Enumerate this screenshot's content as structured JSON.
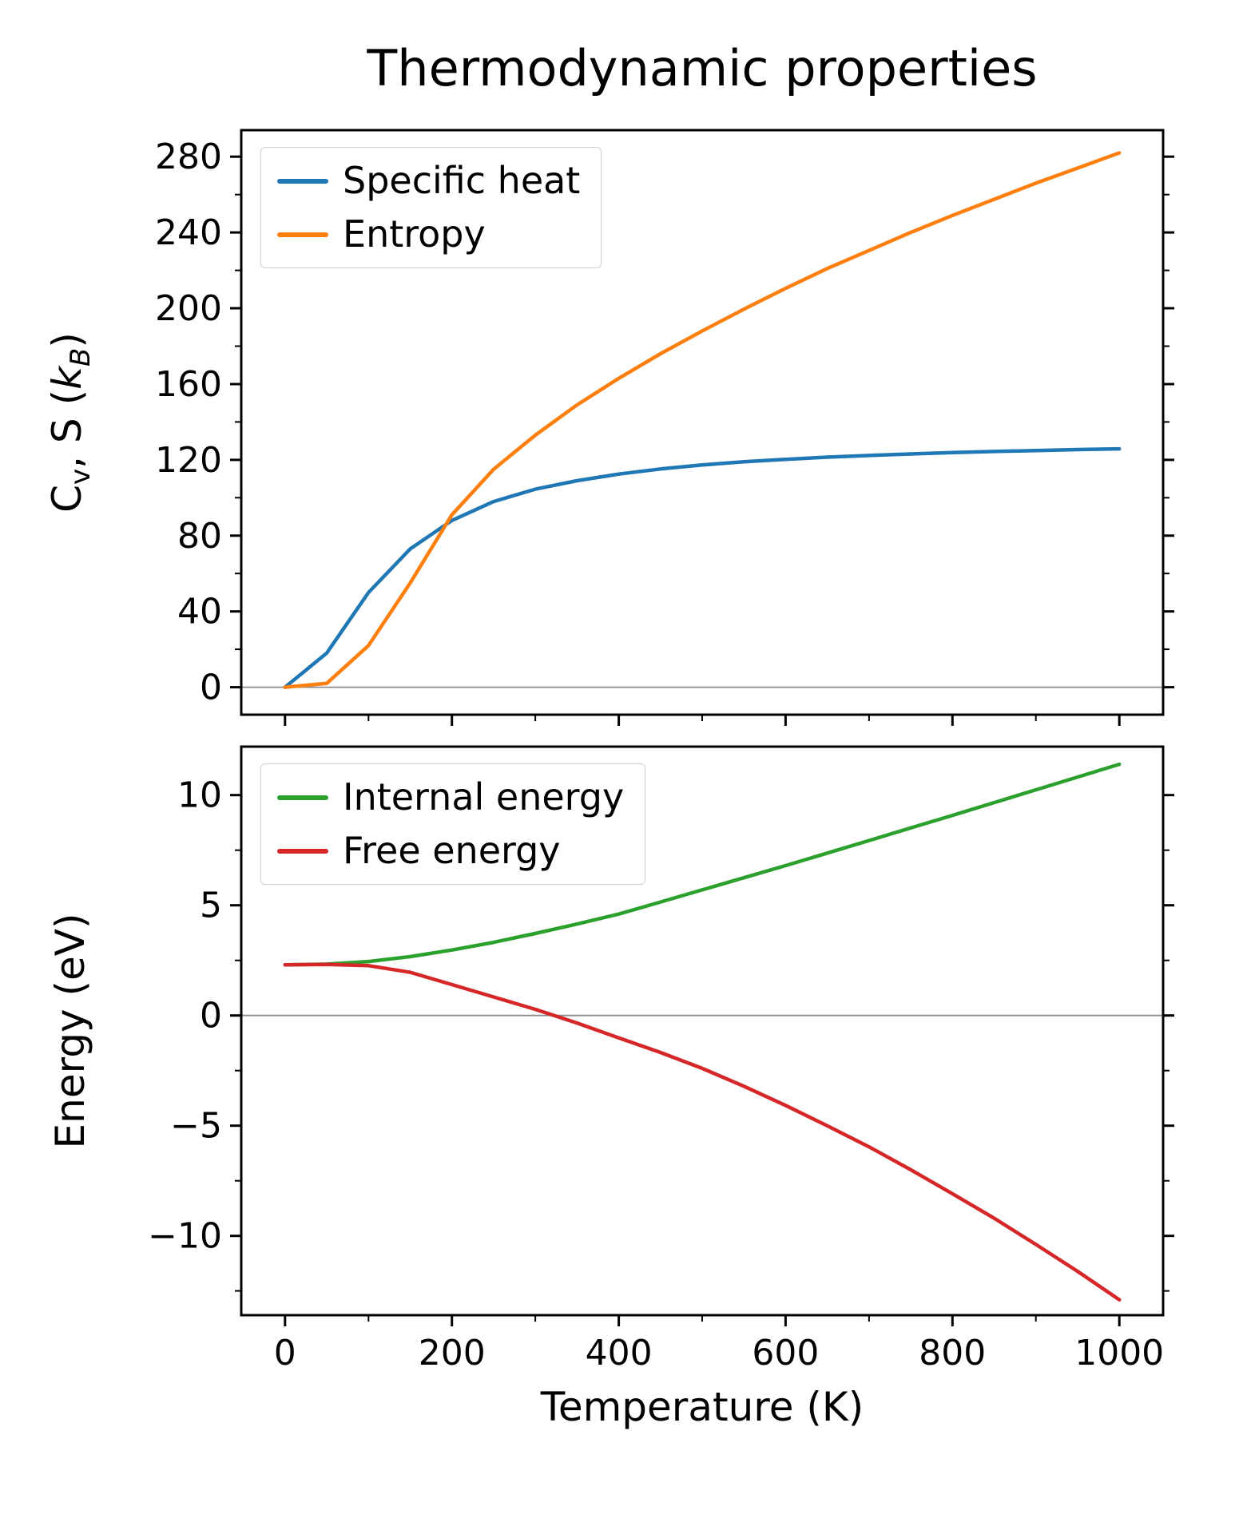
{
  "figure": {
    "background": "#ffffff"
  },
  "chart_data": [
    {
      "type": "line",
      "title": "Thermodynamic properties",
      "xlabel": "",
      "ylabel": "C_v, S (k_B)",
      "ylabel_parts": {
        "base1": "C",
        "sub1": "v",
        "mid": ", S (",
        "base2": "k",
        "sub2": "B",
        "end": ")"
      },
      "x": [
        0,
        50,
        100,
        150,
        200,
        250,
        300,
        350,
        400,
        450,
        500,
        550,
        600,
        650,
        700,
        750,
        800,
        850,
        900,
        950,
        1000
      ],
      "series": [
        {
          "name": "Specific heat",
          "color": "#1f77b4",
          "values": [
            0,
            18,
            50,
            73,
            88,
            98,
            104.5,
            109,
            112.5,
            115.2,
            117.3,
            119,
            120.3,
            121.4,
            122.3,
            123.1,
            123.8,
            124.4,
            124.9,
            125.4,
            125.8
          ]
        },
        {
          "name": "Entropy",
          "color": "#ff7f0e",
          "values": [
            0,
            2,
            22,
            55,
            91,
            115,
            133,
            149,
            163,
            176,
            188,
            199.5,
            210.5,
            221,
            230.5,
            240,
            249,
            257.5,
            266,
            274,
            282
          ]
        }
      ],
      "xlim": [
        -52.5,
        1052.5
      ],
      "ylim": [
        -14.5,
        294
      ],
      "xticks": [
        0,
        200,
        400,
        600,
        800,
        1000
      ],
      "xtick_labels": null,
      "yticks": [
        0,
        40,
        80,
        120,
        160,
        200,
        240,
        280
      ],
      "ytick_labels": [
        "0",
        "40",
        "80",
        "120",
        "160",
        "200",
        "240",
        "280"
      ],
      "grid": false,
      "zero_line": true,
      "legend": {
        "position": "upper left",
        "entries": [
          "Specific heat",
          "Entropy"
        ]
      }
    },
    {
      "type": "line",
      "title": "",
      "xlabel": "Temperature (K)",
      "ylabel": "Energy (eV)",
      "x": [
        0,
        50,
        100,
        150,
        200,
        250,
        300,
        350,
        400,
        450,
        500,
        550,
        600,
        650,
        700,
        750,
        800,
        850,
        900,
        950,
        1000
      ],
      "series": [
        {
          "name": "Internal energy",
          "color": "#2ca02c",
          "values": [
            2.3,
            2.33,
            2.45,
            2.67,
            2.97,
            3.32,
            3.72,
            4.15,
            4.6,
            5.15,
            5.7,
            6.25,
            6.8,
            7.37,
            7.94,
            8.51,
            9.08,
            9.66,
            10.24,
            10.82,
            11.4
          ]
        },
        {
          "name": "Free energy",
          "color": "#d62728",
          "values": [
            2.3,
            2.32,
            2.26,
            1.96,
            1.4,
            0.84,
            0.28,
            -0.34,
            -1.02,
            -1.68,
            -2.4,
            -3.21,
            -4.08,
            -5.01,
            -5.96,
            -7.0,
            -8.09,
            -9.2,
            -10.39,
            -11.61,
            -12.9
          ]
        }
      ],
      "xlim": [
        -52.5,
        1052.5
      ],
      "ylim": [
        -13.6,
        12.2
      ],
      "xticks": [
        0,
        200,
        400,
        600,
        800,
        1000
      ],
      "xtick_labels": [
        "0",
        "200",
        "400",
        "600",
        "800",
        "1000"
      ],
      "yticks": [
        -10,
        -5,
        0,
        5,
        10
      ],
      "ytick_labels": [
        "−10",
        "−5",
        "0",
        "5",
        "10"
      ],
      "grid": false,
      "zero_line": true,
      "legend": {
        "position": "upper left",
        "entries": [
          "Internal energy",
          "Free energy"
        ]
      }
    }
  ]
}
